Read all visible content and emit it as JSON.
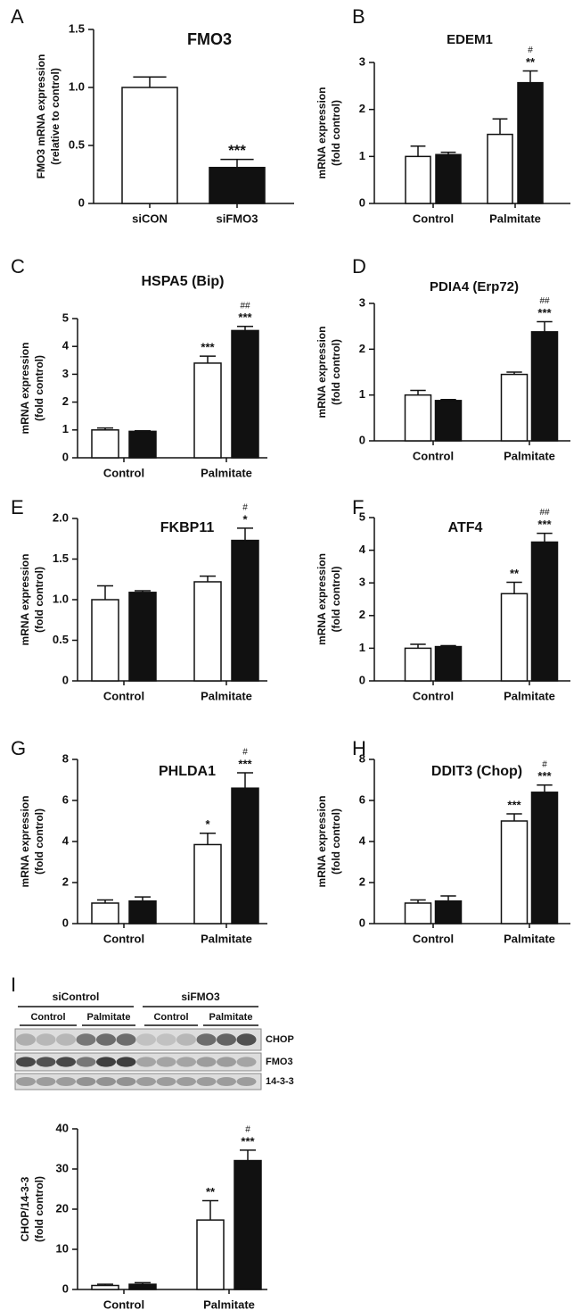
{
  "chart_data": [
    {
      "type": "bar",
      "panel": "A",
      "title": "FMO3",
      "ylabel": [
        "FMO3 mRNA expression",
        "(relative to control)"
      ],
      "categories": [
        "siCON",
        "siFMO3"
      ],
      "ylim": [
        0,
        1.5
      ],
      "yticks": [
        0,
        {
          "value": 0.5,
          "label": "0.5"
        },
        {
          "value": 1.0,
          "label": "1.0"
        },
        {
          "value": 1.5,
          "label": "1.5"
        }
      ],
      "series": [
        {
          "colors": [
            "#ffffff",
            "#111111"
          ],
          "values": [
            1.0,
            0.31
          ],
          "errors": [
            0.09,
            0.07
          ],
          "sig": [
            null,
            "***"
          ],
          "sig2": [
            null,
            null
          ]
        }
      ]
    },
    {
      "type": "bar",
      "panel": "B",
      "title": "EDEM1",
      "ylabel": [
        "mRNA expression",
        "(fold control)"
      ],
      "categories": [
        "Control",
        "Palmitate"
      ],
      "ylim": [
        0,
        3
      ],
      "yticks": [
        0,
        1,
        2,
        3
      ],
      "series": [
        {
          "color": "#ffffff",
          "values": [
            1.0,
            1.47
          ],
          "errors": [
            0.22,
            0.33
          ],
          "sig": [
            null,
            null
          ],
          "sig2": [
            null,
            null
          ]
        },
        {
          "color": "#111111",
          "values": [
            1.04,
            2.57
          ],
          "errors": [
            0.05,
            0.25
          ],
          "sig": [
            null,
            "**"
          ],
          "sig2": [
            null,
            "#"
          ]
        }
      ]
    },
    {
      "type": "bar",
      "panel": "C",
      "title": "HSPA5 (Bip)",
      "ylabel": [
        "mRNA expression",
        "(fold control)"
      ],
      "categories": [
        "Control",
        "Palmitate"
      ],
      "ylim": [
        0,
        5
      ],
      "yticks": [
        0,
        1,
        2,
        3,
        4,
        5
      ],
      "series": [
        {
          "color": "#ffffff",
          "values": [
            1.0,
            3.4
          ],
          "errors": [
            0.07,
            0.25
          ],
          "sig": [
            null,
            "***"
          ],
          "sig2": [
            null,
            null
          ]
        },
        {
          "color": "#111111",
          "values": [
            0.95,
            4.57
          ],
          "errors": [
            0.02,
            0.15
          ],
          "sig": [
            null,
            "***"
          ],
          "sig2": [
            null,
            "##"
          ]
        }
      ]
    },
    {
      "type": "bar",
      "panel": "D",
      "title": "PDIA4 (Erp72)",
      "ylabel": [
        "mRNA expression",
        "(fold control)"
      ],
      "categories": [
        "Control",
        "Palmitate"
      ],
      "ylim": [
        0,
        3
      ],
      "yticks": [
        0,
        1,
        2,
        3
      ],
      "series": [
        {
          "color": "#ffffff",
          "values": [
            1.0,
            1.45
          ],
          "errors": [
            0.1,
            0.05
          ],
          "sig": [
            null,
            null
          ],
          "sig2": [
            null,
            null
          ]
        },
        {
          "color": "#111111",
          "values": [
            0.88,
            2.38
          ],
          "errors": [
            0.02,
            0.22
          ],
          "sig": [
            null,
            "***"
          ],
          "sig2": [
            null,
            "##"
          ]
        }
      ]
    },
    {
      "type": "bar",
      "panel": "E",
      "title": "FKBP11",
      "ylabel": [
        "mRNA expression",
        "(fold control)"
      ],
      "categories": [
        "Control",
        "Palmitate"
      ],
      "ylim": [
        0,
        2.0
      ],
      "yticks": [
        0,
        {
          "value": 0.5,
          "label": "0.5"
        },
        {
          "value": 1.0,
          "label": "1.0"
        },
        {
          "value": 1.5,
          "label": "1.5"
        },
        {
          "value": 2.0,
          "label": "2.0"
        }
      ],
      "series": [
        {
          "color": "#ffffff",
          "values": [
            1.0,
            1.22
          ],
          "errors": [
            0.17,
            0.07
          ],
          "sig": [
            null,
            null
          ],
          "sig2": [
            null,
            null
          ]
        },
        {
          "color": "#111111",
          "values": [
            1.09,
            1.73
          ],
          "errors": [
            0.02,
            0.15
          ],
          "sig": [
            null,
            "*"
          ],
          "sig2": [
            null,
            "#"
          ]
        }
      ]
    },
    {
      "type": "bar",
      "panel": "F",
      "title": "ATF4",
      "ylabel": [
        "mRNA expression",
        "(fold control)"
      ],
      "categories": [
        "Control",
        "Palmitate"
      ],
      "ylim": [
        0,
        5
      ],
      "yticks": [
        0,
        1,
        2,
        3,
        4,
        5
      ],
      "series": [
        {
          "color": "#ffffff",
          "values": [
            1.0,
            2.67
          ],
          "errors": [
            0.12,
            0.35
          ],
          "sig": [
            null,
            "**"
          ],
          "sig2": [
            null,
            null
          ]
        },
        {
          "color": "#111111",
          "values": [
            1.05,
            4.25
          ],
          "errors": [
            0.03,
            0.27
          ],
          "sig": [
            null,
            "***"
          ],
          "sig2": [
            null,
            "##"
          ]
        }
      ]
    },
    {
      "type": "bar",
      "panel": "G",
      "title": "PHLDA1",
      "ylabel": [
        "mRNA expression",
        "(fold control)"
      ],
      "categories": [
        "Control",
        "Palmitate"
      ],
      "ylim": [
        0,
        8
      ],
      "yticks": [
        0,
        2,
        4,
        6,
        8
      ],
      "series": [
        {
          "color": "#ffffff",
          "values": [
            1.0,
            3.85
          ],
          "errors": [
            0.15,
            0.55
          ],
          "sig": [
            null,
            "*"
          ],
          "sig2": [
            null,
            null
          ]
        },
        {
          "color": "#111111",
          "values": [
            1.1,
            6.6
          ],
          "errors": [
            0.2,
            0.75
          ],
          "sig": [
            null,
            "***"
          ],
          "sig2": [
            null,
            "#"
          ]
        }
      ]
    },
    {
      "type": "bar",
      "panel": "H",
      "title": "DDIT3 (Chop)",
      "ylabel": [
        "mRNA expression",
        "(fold control)"
      ],
      "categories": [
        "Control",
        "Palmitate"
      ],
      "ylim": [
        0,
        8
      ],
      "yticks": [
        0,
        2,
        4,
        6,
        8
      ],
      "series": [
        {
          "color": "#ffffff",
          "values": [
            1.0,
            5.0
          ],
          "errors": [
            0.15,
            0.35
          ],
          "sig": [
            null,
            "***"
          ],
          "sig2": [
            null,
            null
          ]
        },
        {
          "color": "#111111",
          "values": [
            1.1,
            6.4
          ],
          "errors": [
            0.25,
            0.35
          ],
          "sig": [
            null,
            "***"
          ],
          "sig2": [
            null,
            "#"
          ]
        }
      ]
    },
    {
      "type": "bar",
      "panel": "I",
      "ylabel": [
        "CHOP/14-3-3",
        "(fold control)"
      ],
      "categories": [
        "Control",
        "Palmitate"
      ],
      "ylim": [
        0,
        40
      ],
      "yticks": [
        0,
        10,
        20,
        30,
        40
      ],
      "series": [
        {
          "color": "#ffffff",
          "values": [
            1.0,
            17.3
          ],
          "errors": [
            0.3,
            4.8
          ],
          "sig": [
            null,
            "**"
          ],
          "sig2": [
            null,
            null
          ]
        },
        {
          "color": "#111111",
          "values": [
            1.3,
            32.1
          ],
          "errors": [
            0.4,
            2.6
          ],
          "sig": [
            null,
            "***"
          ],
          "sig2": [
            null,
            "#"
          ]
        }
      ],
      "blot": {
        "groups": [
          "siControl",
          "siFMO3"
        ],
        "conditions": [
          "Control",
          "Palmitate",
          "Control",
          "Palmitate"
        ],
        "rows": [
          "CHOP",
          "FMO3",
          "14-3-3"
        ]
      }
    }
  ]
}
